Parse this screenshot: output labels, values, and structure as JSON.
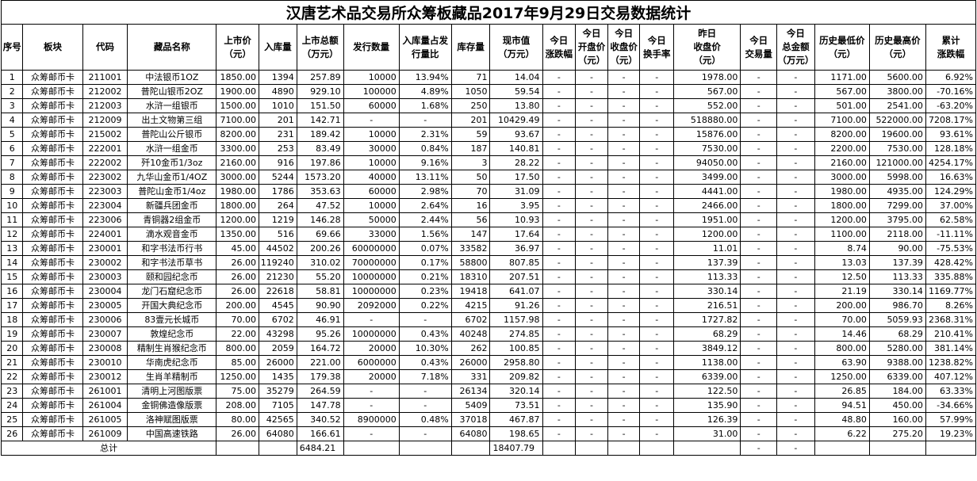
{
  "title": "汉唐艺术品交易所众筹板藏品2017年9月29日交易数据统计",
  "headers": [
    [
      "序号"
    ],
    [
      "板块"
    ],
    [
      "代码"
    ],
    [
      "藏品名称"
    ],
    [
      "上市价",
      "（元）"
    ],
    [
      "入库量"
    ],
    [
      "上市总额",
      "（万元）"
    ],
    [
      "发行数量"
    ],
    [
      "入库量占发",
      "行量比"
    ],
    [
      "库存量"
    ],
    [
      "现市值",
      "（万元）"
    ],
    [
      "今日",
      "涨跌幅"
    ],
    [
      "今日",
      "开盘价",
      "（元）"
    ],
    [
      "今日",
      "收盘价",
      "（元）"
    ],
    [
      "今日",
      "换手率"
    ],
    [
      "昨日",
      "收盘价",
      "（元）"
    ],
    [
      "今日",
      "交易量"
    ],
    [
      "今日",
      "总金额",
      "（万元）"
    ],
    [
      "历史最低价",
      "（元）"
    ],
    [
      "历史最高价",
      "（元）"
    ],
    [
      "累计",
      "涨跌幅"
    ]
  ],
  "rows": [
    [
      "1",
      "众筹邮币卡",
      "211001",
      "中法银币1OZ",
      "1850.00",
      "1394",
      "257.89",
      "10000",
      "13.94%",
      "71",
      "14.04",
      "-",
      "-",
      "-",
      "-",
      "1978.00",
      "-",
      "-",
      "1171.00",
      "5600.00",
      "6.92%"
    ],
    [
      "2",
      "众筹邮币卡",
      "212002",
      "普陀山银币2OZ",
      "1900.00",
      "4890",
      "929.10",
      "100000",
      "4.89%",
      "1050",
      "59.54",
      "-",
      "-",
      "-",
      "-",
      "567.00",
      "-",
      "-",
      "567.00",
      "3800.00",
      "-70.16%"
    ],
    [
      "3",
      "众筹邮币卡",
      "212003",
      "水浒一组银币",
      "1500.00",
      "1010",
      "151.50",
      "60000",
      "1.68%",
      "250",
      "13.80",
      "-",
      "-",
      "-",
      "-",
      "552.00",
      "-",
      "-",
      "501.00",
      "2541.00",
      "-63.20%"
    ],
    [
      "4",
      "众筹邮币卡",
      "212009",
      "出土文物第三组",
      "7100.00",
      "201",
      "142.71",
      "-",
      "-",
      "201",
      "10429.49",
      "-",
      "-",
      "-",
      "-",
      "518880.00",
      "-",
      "-",
      "7100.00",
      "522000.00",
      "7208.17%"
    ],
    [
      "5",
      "众筹邮币卡",
      "215002",
      "普陀山公斤银币",
      "8200.00",
      "231",
      "189.42",
      "10000",
      "2.31%",
      "59",
      "93.67",
      "-",
      "-",
      "-",
      "-",
      "15876.00",
      "-",
      "-",
      "8200.00",
      "19600.00",
      "93.61%"
    ],
    [
      "6",
      "众筹邮币卡",
      "222001",
      "水浒一组金币",
      "3300.00",
      "253",
      "83.49",
      "30000",
      "0.84%",
      "187",
      "140.81",
      "-",
      "-",
      "-",
      "-",
      "7530.00",
      "-",
      "-",
      "2200.00",
      "7530.00",
      "128.18%"
    ],
    [
      "7",
      "众筹邮币卡",
      "222002",
      "歼10金币1/3oz",
      "2160.00",
      "916",
      "197.86",
      "10000",
      "9.16%",
      "3",
      "28.22",
      "-",
      "-",
      "-",
      "-",
      "94050.00",
      "-",
      "-",
      "2160.00",
      "121000.00",
      "4254.17%"
    ],
    [
      "8",
      "众筹邮币卡",
      "223002",
      "九华山金币1/4OZ",
      "3000.00",
      "5244",
      "1573.20",
      "40000",
      "13.11%",
      "50",
      "17.50",
      "-",
      "-",
      "-",
      "-",
      "3499.00",
      "-",
      "-",
      "3000.00",
      "5998.00",
      "16.63%"
    ],
    [
      "9",
      "众筹邮币卡",
      "223003",
      "普陀山金币1/4oz",
      "1980.00",
      "1786",
      "353.63",
      "60000",
      "2.98%",
      "70",
      "31.09",
      "-",
      "-",
      "-",
      "-",
      "4441.00",
      "-",
      "-",
      "1980.00",
      "4935.00",
      "124.29%"
    ],
    [
      "10",
      "众筹邮币卡",
      "223004",
      "新疆兵团金币",
      "1800.00",
      "264",
      "47.52",
      "10000",
      "2.64%",
      "16",
      "3.95",
      "-",
      "-",
      "-",
      "-",
      "2466.00",
      "-",
      "-",
      "1800.00",
      "7299.00",
      "37.00%"
    ],
    [
      "11",
      "众筹邮币卡",
      "223006",
      "青铜器2组金币",
      "1200.00",
      "1219",
      "146.28",
      "50000",
      "2.44%",
      "56",
      "10.93",
      "-",
      "-",
      "-",
      "-",
      "1951.00",
      "-",
      "-",
      "1200.00",
      "3795.00",
      "62.58%"
    ],
    [
      "12",
      "众筹邮币卡",
      "224001",
      "滴水观音金币",
      "1350.00",
      "516",
      "69.66",
      "33000",
      "1.56%",
      "147",
      "17.64",
      "-",
      "-",
      "-",
      "-",
      "1200.00",
      "-",
      "-",
      "1100.00",
      "2118.00",
      "-11.11%"
    ],
    [
      "13",
      "众筹邮币卡",
      "230001",
      "和字书法币行书",
      "45.00",
      "44502",
      "200.26",
      "60000000",
      "0.07%",
      "33582",
      "36.97",
      "-",
      "-",
      "-",
      "-",
      "11.01",
      "-",
      "-",
      "8.74",
      "90.00",
      "-75.53%"
    ],
    [
      "14",
      "众筹邮币卡",
      "230002",
      "和字书法币草书",
      "26.00",
      "119240",
      "310.02",
      "70000000",
      "0.17%",
      "58800",
      "807.85",
      "-",
      "-",
      "-",
      "-",
      "137.39",
      "-",
      "-",
      "13.03",
      "137.39",
      "428.42%"
    ],
    [
      "15",
      "众筹邮币卡",
      "230003",
      "颐和园纪念币",
      "26.00",
      "21230",
      "55.20",
      "10000000",
      "0.21%",
      "18310",
      "207.51",
      "-",
      "-",
      "-",
      "-",
      "113.33",
      "-",
      "-",
      "12.50",
      "113.33",
      "335.88%"
    ],
    [
      "16",
      "众筹邮币卡",
      "230004",
      "龙门石窟纪念币",
      "26.00",
      "22618",
      "58.81",
      "10000000",
      "0.23%",
      "19418",
      "641.07",
      "-",
      "-",
      "-",
      "-",
      "330.14",
      "-",
      "-",
      "21.19",
      "330.14",
      "1169.77%"
    ],
    [
      "17",
      "众筹邮币卡",
      "230005",
      "开国大典纪念币",
      "200.00",
      "4545",
      "90.90",
      "2092000",
      "0.22%",
      "4215",
      "91.26",
      "-",
      "-",
      "-",
      "-",
      "216.51",
      "-",
      "-",
      "200.00",
      "986.70",
      "8.26%"
    ],
    [
      "18",
      "众筹邮币卡",
      "230006",
      "83壹元长城币",
      "70.00",
      "6702",
      "46.91",
      "-",
      "-",
      "6702",
      "1157.98",
      "-",
      "-",
      "-",
      "-",
      "1727.82",
      "-",
      "-",
      "70.00",
      "5059.93",
      "2368.31%"
    ],
    [
      "19",
      "众筹邮币卡",
      "230007",
      "敦煌纪念币",
      "22.00",
      "43298",
      "95.26",
      "10000000",
      "0.43%",
      "40248",
      "274.85",
      "-",
      "-",
      "-",
      "-",
      "68.29",
      "-",
      "-",
      "14.46",
      "68.29",
      "210.41%"
    ],
    [
      "20",
      "众筹邮币卡",
      "230008",
      "精制生肖猴纪念币",
      "800.00",
      "2059",
      "164.72",
      "20000",
      "10.30%",
      "262",
      "100.85",
      "-",
      "-",
      "-",
      "-",
      "3849.12",
      "-",
      "-",
      "800.00",
      "5280.00",
      "381.14%"
    ],
    [
      "21",
      "众筹邮币卡",
      "230010",
      "华南虎纪念币",
      "85.00",
      "26000",
      "221.00",
      "6000000",
      "0.43%",
      "26000",
      "2958.80",
      "-",
      "-",
      "-",
      "-",
      "1138.00",
      "-",
      "-",
      "63.90",
      "9388.00",
      "1238.82%"
    ],
    [
      "22",
      "众筹邮币卡",
      "230012",
      "生肖羊精制币",
      "1250.00",
      "1435",
      "179.38",
      "20000",
      "7.18%",
      "331",
      "209.82",
      "-",
      "-",
      "-",
      "-",
      "6339.00",
      "-",
      "-",
      "1250.00",
      "6339.00",
      "407.12%"
    ],
    [
      "23",
      "众筹邮币卡",
      "261001",
      "清明上河图版票",
      "75.00",
      "35279",
      "264.59",
      "-",
      "-",
      "26134",
      "320.14",
      "-",
      "-",
      "-",
      "-",
      "122.50",
      "-",
      "-",
      "26.85",
      "184.00",
      "63.33%"
    ],
    [
      "24",
      "众筹邮币卡",
      "261004",
      "金铜佛造像版票",
      "208.00",
      "7105",
      "147.78",
      "-",
      "-",
      "5409",
      "73.51",
      "-",
      "-",
      "-",
      "-",
      "135.90",
      "-",
      "-",
      "94.51",
      "450.00",
      "-34.66%"
    ],
    [
      "25",
      "众筹邮币卡",
      "261005",
      "洛神赋图版票",
      "80.00",
      "42565",
      "340.52",
      "8900000",
      "0.48%",
      "37018",
      "467.87",
      "-",
      "-",
      "-",
      "-",
      "126.39",
      "-",
      "-",
      "48.80",
      "160.00",
      "57.99%"
    ],
    [
      "26",
      "众筹邮币卡",
      "261009",
      "中国高速铁路",
      "26.00",
      "64080",
      "166.61",
      "-",
      "-",
      "64080",
      "198.65",
      "-",
      "-",
      "-",
      "-",
      "31.00",
      "-",
      "-",
      "6.22",
      "275.20",
      "19.23%"
    ]
  ],
  "total": {
    "label": "总计",
    "listing_total": "6484.21",
    "market_value_total": "18407.79",
    "trade_volume": "-",
    "trade_amount": "-"
  }
}
